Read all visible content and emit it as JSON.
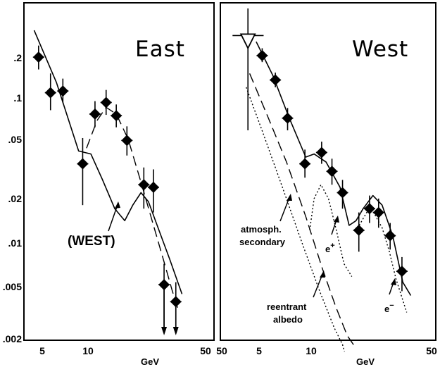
{
  "chart_data": [
    {
      "panel": "left",
      "type": "scatter",
      "title": "East",
      "xlabel": "GeV",
      "xscale": "log",
      "yscale": "log",
      "xlim": [
        4.3,
        50
      ],
      "ylim": [
        0.002,
        0.4
      ],
      "x_tick_labels": [
        "5",
        "10",
        "50"
      ],
      "y_tick_labels": [
        ".2",
        ".1",
        ".05",
        ".02",
        ".01",
        ".005",
        ".002"
      ],
      "points": [
        {
          "x": 5.1,
          "y": 0.195,
          "yerr": [
            0.16,
            0.235
          ]
        },
        {
          "x": 6.0,
          "y": 0.11,
          "yerr": [
            0.083,
            0.15
          ]
        },
        {
          "x": 7.1,
          "y": 0.113,
          "yerr": [
            0.093,
            0.138
          ]
        },
        {
          "x": 9.3,
          "y": 0.035,
          "yerr": [
            0.018,
            0.053
          ]
        },
        {
          "x": 11.0,
          "y": 0.078,
          "yerr": [
            0.063,
            0.096
          ]
        },
        {
          "x": 12.8,
          "y": 0.094,
          "yerr": [
            0.077,
            0.115
          ]
        },
        {
          "x": 14.7,
          "y": 0.076,
          "yerr": [
            0.063,
            0.091
          ]
        },
        {
          "x": 17.0,
          "y": 0.051,
          "yerr": [
            0.04,
            0.064
          ]
        },
        {
          "x": 21.4,
          "y": 0.025,
          "yerr": [
            0.017,
            0.033
          ]
        },
        {
          "x": 24.4,
          "y": 0.024,
          "yerr": [
            0.016,
            0.032
          ]
        },
        {
          "x": 28.2,
          "y": 0.005,
          "yerr": [
            0.0023,
            0.007
          ]
        },
        {
          "x": 33.1,
          "y": 0.0038,
          "yerr": [
            0.0023,
            0.0052
          ]
        }
      ],
      "lines": [
        {
          "label": "(WEST)",
          "style": "solid",
          "x": [
            4.8,
            6.5,
            8.8,
            10.4,
            12.2,
            14.4,
            16.5,
            18.4,
            20.6,
            22.8,
            26.3,
            30.5,
            36.0
          ],
          "y": [
            0.3,
            0.13,
            0.043,
            0.041,
            0.027,
            0.017,
            0.014,
            0.018,
            0.022,
            0.019,
            0.012,
            0.0075,
            0.0043
          ]
        },
        {
          "style": "dashed",
          "x": [
            9.8,
            11.3,
            12.8,
            14.7,
            17.3,
            20.6,
            24.4,
            28.2,
            31.4,
            34.0
          ],
          "y": [
            0.045,
            0.07,
            0.087,
            0.078,
            0.052,
            0.026,
            0.013,
            0.0072,
            0.0046,
            0.0034
          ]
        }
      ],
      "annotations": [
        "(WEST)"
      ]
    },
    {
      "panel": "right",
      "type": "scatter",
      "title": "West",
      "xlabel": "GeV",
      "xscale": "log",
      "yscale": "log",
      "xlim": [
        3.5,
        50
      ],
      "ylim": [
        0.002,
        0.4
      ],
      "x_tick_labels": [
        "50",
        "5",
        "10",
        "50"
      ],
      "points": [
        {
          "x": 5.2,
          "y": 0.2,
          "yerr": [
            0.18,
            0.225
          ]
        },
        {
          "x": 6.2,
          "y": 0.135,
          "yerr": [
            0.12,
            0.152
          ]
        },
        {
          "x": 7.3,
          "y": 0.073,
          "yerr": [
            0.06,
            0.086
          ]
        },
        {
          "x": 9.2,
          "y": 0.035,
          "yerr": [
            0.028,
            0.044
          ]
        },
        {
          "x": 11.5,
          "y": 0.042,
          "yerr": [
            0.035,
            0.05
          ]
        },
        {
          "x": 13.2,
          "y": 0.031,
          "yerr": [
            0.025,
            0.038
          ]
        },
        {
          "x": 15.2,
          "y": 0.022,
          "yerr": [
            0.017,
            0.027
          ]
        },
        {
          "x": 18.9,
          "y": 0.012,
          "yerr": [
            0.0085,
            0.016
          ]
        },
        {
          "x": 21.8,
          "y": 0.017,
          "yerr": [
            0.0135,
            0.021
          ]
        },
        {
          "x": 24.6,
          "y": 0.016,
          "yerr": [
            0.0125,
            0.02
          ]
        },
        {
          "x": 28.7,
          "y": 0.011,
          "yerr": [
            0.0088,
            0.0135
          ]
        },
        {
          "x": 33.6,
          "y": 0.0062,
          "yerr": [
            0.0045,
            0.0078
          ]
        }
      ],
      "upper_limit": {
        "x": 4.3,
        "y": 0.27,
        "xerr": [
          3.5,
          5.3
        ],
        "y_low": 0.06
      },
      "lines": [
        {
          "style": "solid",
          "x": [
            4.8,
            6.0,
            7.4,
            9.3,
            10.4,
            12.2,
            14.7,
            16.6,
            18.2,
            20.0,
            22.8,
            25.8,
            29.7,
            34.0,
            37.8
          ],
          "y": [
            0.25,
            0.145,
            0.075,
            0.039,
            0.041,
            0.036,
            0.024,
            0.013,
            0.014,
            0.017,
            0.021,
            0.018,
            0.011,
            0.0052,
            0.0042
          ]
        },
        {
          "label": "e+",
          "style": "dotted",
          "x": [
            9.8,
            10.4,
            11.4,
            12.6,
            14.0,
            15.5,
            17.2
          ],
          "y": [
            0.012,
            0.02,
            0.025,
            0.02,
            0.012,
            0.007,
            0.0057
          ]
        },
        {
          "label": "e-",
          "style": "dotted",
          "x": [
            19.0,
            21.0,
            23.0,
            25.8,
            28.4,
            31.0,
            35.8
          ],
          "y": [
            0.013,
            0.016,
            0.016,
            0.0125,
            0.0085,
            0.0055,
            0.0032
          ]
        },
        {
          "label": "atmosph. secondary",
          "style": "dashed",
          "x": [
            4.4,
            5.6,
            7.2,
            9.3,
            11.6,
            13.9,
            16.2,
            17.6
          ],
          "y": [
            0.15,
            0.075,
            0.036,
            0.015,
            0.0065,
            0.0035,
            0.0022,
            0.0019
          ]
        },
        {
          "label": "reentrant albedo",
          "style": "dotted",
          "x": [
            4.2,
            5.3,
            6.9,
            8.8,
            11.2,
            13.6,
            15.2,
            15.6
          ],
          "y": [
            0.12,
            0.056,
            0.023,
            0.01,
            0.0045,
            0.0025,
            0.0019,
            0.0017
          ]
        }
      ],
      "annotations": [
        "atmosph.",
        "secondary",
        "e+",
        "reentrant",
        "albedo",
        "e−"
      ]
    }
  ]
}
